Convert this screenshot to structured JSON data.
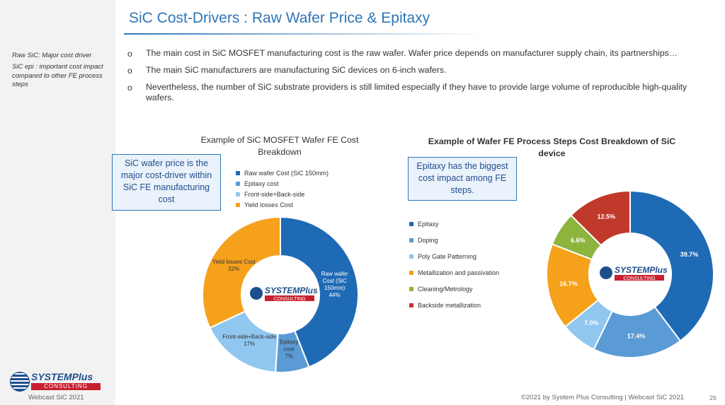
{
  "title": "SiC Cost-Drivers : Raw Wafer Price & Epitaxy",
  "side_notes": [
    "Raw SiC: Major cost driver",
    "SiC epi : important cost impact compared to other FE process steps"
  ],
  "bullet_marker": "o",
  "bullets": [
    "The main cost in SiC MOSFET manufacturing cost is the raw wafer. Wafer price depends on manufacturer supply chain, its partnerships…",
    "The main SiC manufacturers are manufacturing SiC devices on 6-inch wafers.",
    "Nevertheless, the number of SiC substrate providers is still limited especially if they have to provide large volume of reproducible high-quality wafers."
  ],
  "callouts": {
    "left": "SiC wafer price is the major cost-driver within SiC FE manufacturing cost",
    "right": "Epitaxy has the biggest cost impact among FE steps."
  },
  "logo": {
    "word1": "SYSTEM",
    "word2": "Plus",
    "word3": "CONSULTING"
  },
  "footer": {
    "left": "Webcast SiC 2021",
    "right": "©2021 by System Plus Consulting | Webcast SiC 2021",
    "page": "26"
  },
  "chart_data": [
    {
      "type": "pie",
      "donut": true,
      "title": "Example of SiC MOSFET Wafer FE Cost Breakdown",
      "categories": [
        "Raw wafer Cost (SiC 150mm)",
        "Epitaxy cost",
        "Front-side+Back-side",
        "Yield losses Cost"
      ],
      "values": [
        44,
        7,
        17,
        32
      ],
      "colors": [
        "#1f6ab5",
        "#5b9bd5",
        "#8fc7ef",
        "#f5a11b"
      ],
      "data_labels": [
        [
          "Raw wafer",
          "Cost (SiC",
          "150mm)",
          "44%"
        ],
        [
          "Epitaxy",
          "cost",
          "7%"
        ],
        [
          "Front-side+Back-side",
          "17%"
        ],
        [
          "Yield losses Cost",
          "32%"
        ]
      ],
      "legend": "top-right"
    },
    {
      "type": "pie",
      "donut": true,
      "title": "Example of Wafer FE Process Steps Cost Breakdown of SiC device",
      "categories": [
        "Epitaxy",
        "Doping",
        "Poly Gate Patterning",
        "Metallization and passivation",
        "Cleaning/Metrology",
        "Backside metallization"
      ],
      "values": [
        39.7,
        17.4,
        7.0,
        16.7,
        6.6,
        12.5
      ],
      "colors": [
        "#1f6ab5",
        "#5b9bd5",
        "#8fc7ef",
        "#f5a11b",
        "#8db43c",
        "#c0392b"
      ],
      "data_labels": [
        "39.7%",
        "17.4%",
        "7.0%",
        "16.7%",
        "6.6%",
        "12.5%"
      ],
      "legend": "left"
    }
  ]
}
